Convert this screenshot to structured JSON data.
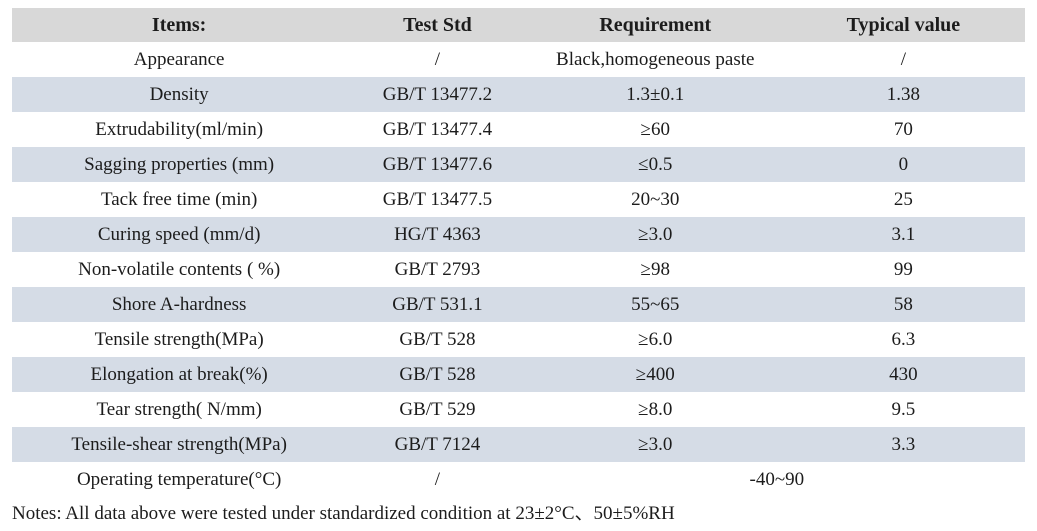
{
  "table": {
    "columns": [
      "Items:",
      "Test Std",
      "Requirement",
      "Typical value"
    ],
    "rows": [
      {
        "item": "Appearance",
        "std": "/",
        "req": "Black,homogeneous paste",
        "typ": "/"
      },
      {
        "item": "Density",
        "std": "GB/T 13477.2",
        "req": "1.3±0.1",
        "typ": "1.38"
      },
      {
        "item": "Extrudability(ml/min)",
        "std": "GB/T 13477.4",
        "req": "≥60",
        "typ": "70"
      },
      {
        "item": "Sagging properties (mm)",
        "std": "GB/T 13477.6",
        "req": "≤0.5",
        "typ": "0"
      },
      {
        "item": "Tack free time (min)",
        "std": "GB/T 13477.5",
        "req": "20~30",
        "typ": "25"
      },
      {
        "item": "Curing speed (mm/d)",
        "std": "HG/T 4363",
        "req": "≥3.0",
        "typ": "3.1"
      },
      {
        "item": "Non-volatile contents ( %)",
        "std": "GB/T 2793",
        "req": "≥98",
        "typ": "99"
      },
      {
        "item": "Shore A-hardness",
        "std": "GB/T 531.1",
        "req": "55~65",
        "typ": "58"
      },
      {
        "item": "Tensile strength(MPa)",
        "std": "GB/T 528",
        "req": "≥6.0",
        "typ": "6.3"
      },
      {
        "item": "Elongation at break(%)",
        "std": "GB/T 528",
        "req": "≥400",
        "typ": "430"
      },
      {
        "item": "Tear strength( N/mm)",
        "std": "GB/T 529",
        "req": "≥8.0",
        "typ": "9.5"
      },
      {
        "item": "Tensile-shear strength(MPa)",
        "std": "GB/T 7124",
        "req": "≥3.0",
        "typ": "3.3"
      },
      {
        "item": "Operating temperature(°C)",
        "std": "/",
        "req_span": "-40~90"
      }
    ],
    "notes": "Notes: All data above were tested under standardized condition at 23±2°C、50±5%RH"
  },
  "colors": {
    "header_bg": "#d8d8d8",
    "stripe_bg": "#d5dce6",
    "text": "#1c1c1c"
  }
}
